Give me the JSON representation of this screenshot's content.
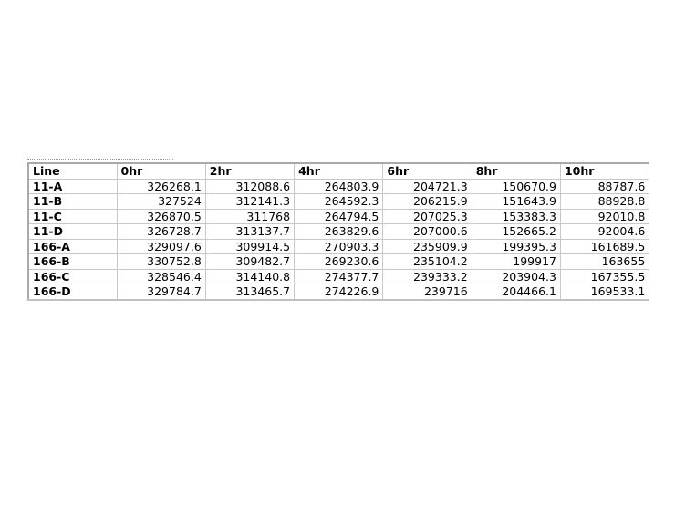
{
  "table": {
    "headers": [
      "Line",
      "0hr",
      "2hr",
      "4hr",
      "6hr",
      "8hr",
      "10hr"
    ],
    "rows": [
      {
        "line": "11-A",
        "values": [
          "326268.1",
          "312088.6",
          "264803.9",
          "204721.3",
          "150670.9",
          "88787.6"
        ]
      },
      {
        "line": "11-B",
        "values": [
          "327524",
          "312141.3",
          "264592.3",
          "206215.9",
          "151643.9",
          "88928.8"
        ]
      },
      {
        "line": "11-C",
        "values": [
          "326870.5",
          "311768",
          "264794.5",
          "207025.3",
          "153383.3",
          "92010.8"
        ]
      },
      {
        "line": "11-D",
        "values": [
          "326728.7",
          "313137.7",
          "263829.6",
          "207000.6",
          "152665.2",
          "92004.6"
        ]
      },
      {
        "line": "166-A",
        "values": [
          "329097.6",
          "309914.5",
          "270903.3",
          "235909.9",
          "199395.3",
          "161689.5"
        ]
      },
      {
        "line": "166-B",
        "values": [
          "330752.8",
          "309482.7",
          "269230.6",
          "235104.2",
          "199917",
          "163655"
        ]
      },
      {
        "line": "166-C",
        "values": [
          "328546.4",
          "314140.8",
          "274377.7",
          "239333.2",
          "203904.3",
          "167355.5"
        ]
      },
      {
        "line": "166-D",
        "values": [
          "329784.7",
          "313465.7",
          "274226.9",
          "239716",
          "204466.1",
          "169533.1"
        ]
      }
    ]
  }
}
